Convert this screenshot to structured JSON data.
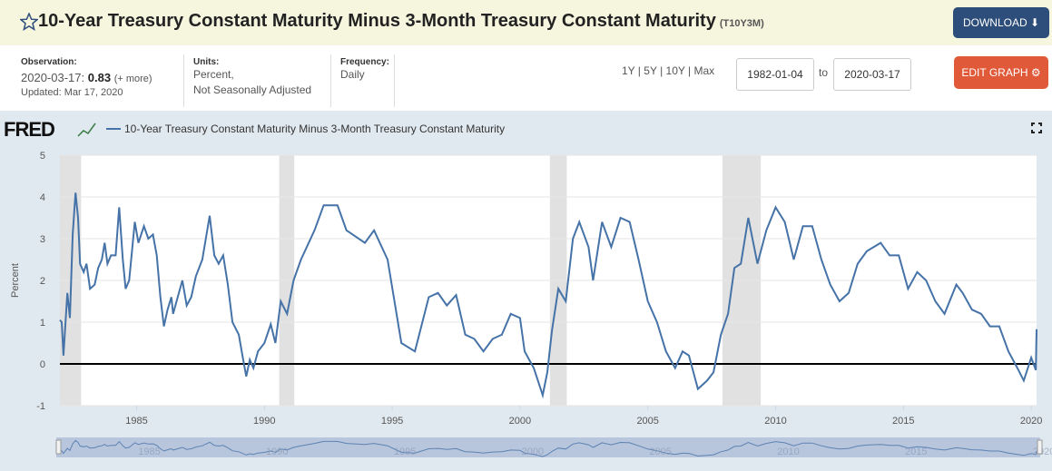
{
  "header": {
    "title": "10-Year Treasury Constant Maturity Minus 3-Month Treasury Constant Maturity",
    "series_id": "(T10Y3M)",
    "download": "DOWNLOAD"
  },
  "info": {
    "observation_label": "Observation:",
    "observation_date": "2020-03-17:",
    "observation_value": "0.83",
    "more": "(+ more)",
    "updated": "Updated: Mar 17, 2020",
    "units_label": "Units:",
    "units_1": "Percent,",
    "units_2": "Not Seasonally Adjusted",
    "frequency_label": "Frequency:",
    "frequency": "Daily"
  },
  "controls": {
    "ranges": [
      "1Y",
      "5Y",
      "10Y",
      "Max"
    ],
    "start": "1982-01-04",
    "to": "to",
    "end": "2020-03-17",
    "edit": "EDIT GRAPH"
  },
  "chart_data": {
    "type": "line",
    "logo": "FRED",
    "y_label": "Percent",
    "x": [
      1982.0,
      1982.07,
      1982.14,
      1982.29,
      1982.39,
      1982.5,
      1982.61,
      1982.71,
      1982.79,
      1982.93,
      1983.04,
      1983.18,
      1983.36,
      1983.5,
      1983.64,
      1983.75,
      1983.86,
      1984.0,
      1984.18,
      1984.32,
      1984.46,
      1984.57,
      1984.71,
      1984.93,
      1985.07,
      1985.29,
      1985.46,
      1985.64,
      1985.79,
      1985.93,
      1986.07,
      1986.21,
      1986.36,
      1986.43,
      1986.61,
      1986.79,
      1986.96,
      1987.14,
      1987.32,
      1987.57,
      1987.86,
      1988.04,
      1988.21,
      1988.39,
      1988.57,
      1988.75,
      1989.0,
      1989.14,
      1989.29,
      1989.43,
      1989.57,
      1989.75,
      1990.0,
      1990.25,
      1990.43,
      1990.64,
      1990.89,
      1991.14,
      1991.43,
      1991.96,
      1992.32,
      1992.86,
      1993.21,
      1993.93,
      1994.29,
      1994.82,
      1995.36,
      1995.89,
      1996.43,
      1996.79,
      1997.14,
      1997.5,
      1997.86,
      1998.21,
      1998.57,
      1998.93,
      1999.29,
      1999.64,
      2000.0,
      2000.18,
      2000.54,
      2000.89,
      2001.07,
      2001.25,
      2001.5,
      2001.79,
      2002.07,
      2002.32,
      2002.68,
      2002.86,
      2003.21,
      2003.57,
      2003.93,
      2004.29,
      2004.64,
      2005.0,
      2005.36,
      2005.71,
      2006.07,
      2006.36,
      2006.61,
      2006.96,
      2007.32,
      2007.57,
      2007.86,
      2008.14,
      2008.39,
      2008.64,
      2008.93,
      2009.29,
      2009.64,
      2010.0,
      2010.36,
      2010.71,
      2011.07,
      2011.43,
      2011.79,
      2012.14,
      2012.5,
      2012.86,
      2013.21,
      2013.57,
      2014.11,
      2014.46,
      2014.82,
      2015.18,
      2015.54,
      2015.89,
      2016.25,
      2016.61,
      2017.07,
      2017.32,
      2017.68,
      2018.04,
      2018.39,
      2018.75,
      2019.11,
      2019.46,
      2019.71,
      2020.0,
      2020.18,
      2020.21
    ],
    "series": [
      {
        "name": "10-Year Treasury Constant Maturity Minus 3-Month Treasury Constant Maturity",
        "color": "#4572a7",
        "values": [
          1.05,
          1.0,
          0.2,
          1.7,
          1.1,
          3.1,
          4.1,
          3.5,
          2.4,
          2.2,
          2.4,
          1.8,
          1.9,
          2.3,
          2.5,
          2.9,
          2.4,
          2.6,
          2.6,
          3.75,
          2.5,
          1.8,
          2.0,
          3.4,
          2.9,
          3.3,
          3.0,
          3.1,
          2.6,
          1.6,
          0.9,
          1.3,
          1.6,
          1.2,
          1.6,
          2.0,
          1.4,
          1.6,
          2.1,
          2.5,
          3.55,
          2.6,
          2.4,
          2.6,
          1.9,
          1.0,
          0.7,
          0.2,
          -0.3,
          0.1,
          -0.1,
          0.3,
          0.5,
          0.95,
          0.5,
          1.5,
          1.2,
          2.0,
          2.5,
          3.2,
          3.8,
          3.8,
          3.2,
          2.9,
          3.2,
          2.5,
          0.5,
          0.3,
          1.6,
          1.7,
          1.4,
          1.65,
          0.7,
          0.6,
          0.3,
          0.6,
          0.7,
          1.2,
          1.1,
          0.3,
          -0.1,
          -0.75,
          -0.2,
          0.8,
          1.8,
          1.5,
          3.0,
          3.4,
          2.8,
          2.0,
          3.4,
          2.8,
          3.5,
          3.4,
          2.5,
          1.5,
          1.0,
          0.3,
          -0.1,
          0.3,
          0.2,
          -0.6,
          -0.4,
          -0.2,
          0.7,
          1.2,
          2.3,
          2.4,
          3.5,
          2.4,
          3.2,
          3.75,
          3.4,
          2.5,
          3.3,
          3.3,
          2.5,
          1.9,
          1.5,
          1.7,
          2.4,
          2.7,
          2.9,
          2.6,
          2.6,
          1.8,
          2.2,
          2.0,
          1.5,
          1.2,
          1.9,
          1.7,
          1.3,
          1.2,
          0.9,
          0.9,
          0.3,
          -0.1,
          -0.4,
          0.15,
          -0.15,
          0.83
        ]
      }
    ],
    "recessions": [
      [
        1982.0,
        1982.83
      ],
      [
        1990.58,
        1991.17
      ],
      [
        2001.17,
        2001.83
      ],
      [
        2007.92,
        2009.42
      ]
    ],
    "xlim": [
      1982.0,
      2020.21
    ],
    "xticks": [
      1985,
      1990,
      1995,
      2000,
      2005,
      2010,
      2015,
      2020
    ],
    "ylim": [
      -1,
      5
    ],
    "yticks": [
      -1,
      0,
      1,
      2,
      3,
      4,
      5
    ],
    "grid": true
  }
}
